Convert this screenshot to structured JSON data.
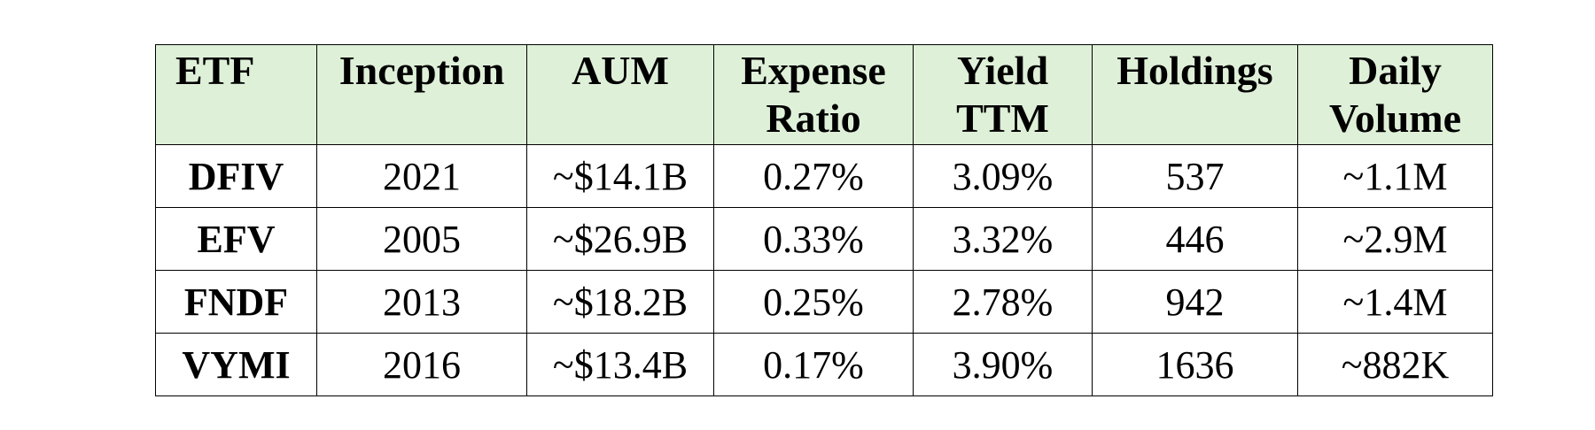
{
  "table": {
    "header": [
      "ETF",
      "Inception",
      "AUM",
      "Expense Ratio",
      "Yield TTM",
      "Holdings",
      "Daily Volume"
    ],
    "rows": [
      [
        "DFIV",
        "2021",
        "~$14.1B",
        "0.27%",
        "3.09%",
        "537",
        "~1.1M"
      ],
      [
        "EFV",
        "2005",
        "~$26.9B",
        "0.33%",
        "3.32%",
        "446",
        "~2.9M"
      ],
      [
        "FNDF",
        "2013",
        "~$18.2B",
        "0.25%",
        "2.78%",
        "942",
        "~1.4M"
      ],
      [
        "VYMI",
        "2016",
        "~$13.4B",
        "0.17%",
        "3.90%",
        "1636",
        "~882K"
      ]
    ]
  }
}
